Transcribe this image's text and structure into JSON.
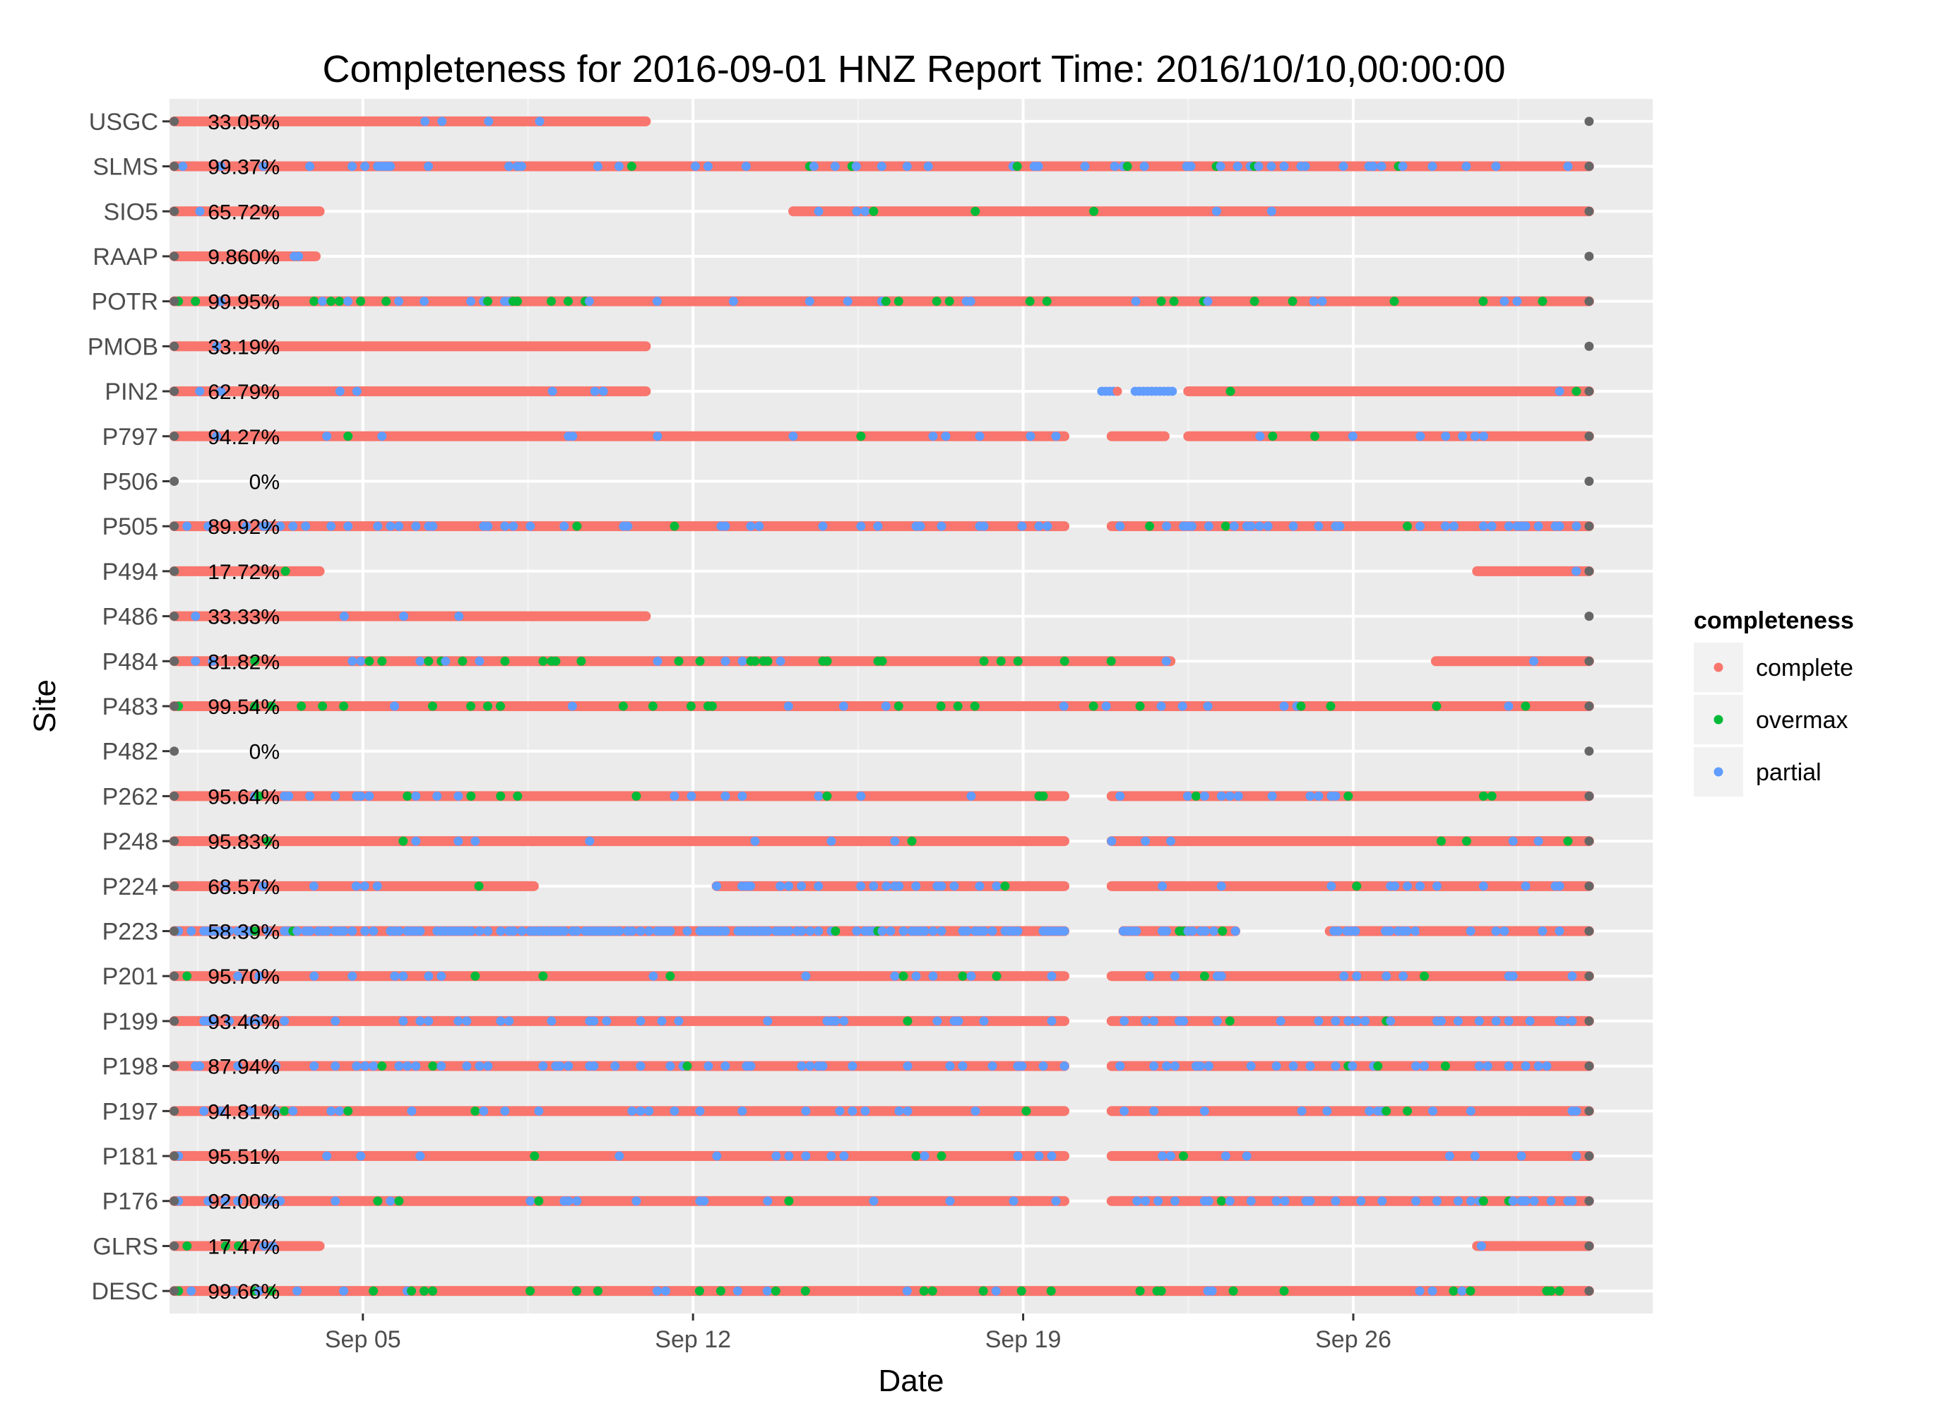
{
  "chart_data": {
    "type": "scatter",
    "title": "Completeness for  2016-09-01 HNZ  Report Time:  2016/10/10,00:00:00",
    "xlabel": "Date",
    "ylabel": "Site",
    "x_range": [
      "2016-08-31T21:36",
      "2016-10-02T08:24"
    ],
    "x_ticks": [
      "Sep 05",
      "Sep 12",
      "Sep 19",
      "Sep 26"
    ],
    "x_tick_dates": [
      "2016-09-05",
      "2016-09-12",
      "2016-09-19",
      "2016-09-26"
    ],
    "grid": true,
    "legend": {
      "title": "completeness",
      "placement": "right",
      "entries": [
        "complete",
        "overmax",
        "partial"
      ]
    },
    "colors": {
      "complete": "#F8766D",
      "overmax": "#00BA38",
      "partial": "#619CFF",
      "endpoint": "#666666",
      "panel": "#EBEBEB",
      "grid": "#FFFFFF"
    },
    "sites": [
      {
        "name": "USGC",
        "completeness": "33.05%",
        "start": "2016-09-01",
        "end": "2016-10-01",
        "segments": [
          {
            "from": "2016-09-01",
            "to": "2016-09-11T00:00",
            "overmax": 0.01,
            "partial": 0.03
          }
        ]
      },
      {
        "name": "SLMS",
        "completeness": "99.37%",
        "start": "2016-09-01",
        "end": "2016-10-01",
        "segments": [
          {
            "from": "2016-09-01",
            "to": "2016-10-01",
            "overmax": 0.04,
            "partial": 0.15
          }
        ]
      },
      {
        "name": "SIO5",
        "completeness": "65.72%",
        "start": "2016-09-01",
        "end": "2016-10-01",
        "segments": [
          {
            "from": "2016-09-01",
            "to": "2016-09-04T02:00",
            "overmax": 0.0,
            "partial": 0.02
          },
          {
            "from": "2016-09-14T03:00",
            "to": "2016-10-01",
            "overmax": 0.01,
            "partial": 0.02
          }
        ]
      },
      {
        "name": "RAAP",
        "completeness": "9.860%",
        "start": "2016-09-01",
        "end": "2016-10-01",
        "segments": [
          {
            "from": "2016-09-01",
            "to": "2016-09-04T00:00",
            "overmax": 0.0,
            "partial": 0.02
          }
        ]
      },
      {
        "name": "POTR",
        "completeness": "99.95%",
        "start": "2016-09-01",
        "end": "2016-10-01",
        "segments": [
          {
            "from": "2016-09-01",
            "to": "2016-10-01",
            "overmax": 0.07,
            "partial": 0.05
          }
        ]
      },
      {
        "name": "PMOB",
        "completeness": "33.19%",
        "start": "2016-09-01",
        "end": "2016-10-01",
        "segments": [
          {
            "from": "2016-09-01",
            "to": "2016-09-11T00:00",
            "overmax": 0.0,
            "partial": 0.02
          }
        ]
      },
      {
        "name": "PIN2",
        "completeness": "62.79%",
        "start": "2016-09-01",
        "end": "2016-10-01",
        "segments": [
          {
            "from": "2016-09-01",
            "to": "2016-09-11T00:00",
            "overmax": 0.0,
            "partial": 0.03
          },
          {
            "from": "2016-09-20T14:00",
            "to": "2016-09-21T00:00",
            "overmax": 0.0,
            "partial": 1.0
          },
          {
            "from": "2016-09-21T09:00",
            "to": "2016-09-22T06:00",
            "overmax": 0.0,
            "partial": 1.0
          },
          {
            "from": "2016-09-22T12:00",
            "to": "2016-10-01",
            "overmax": 0.01,
            "partial": 0.03
          }
        ]
      },
      {
        "name": "P797",
        "completeness": "94.27%",
        "start": "2016-09-01",
        "end": "2016-10-01",
        "segments": [
          {
            "from": "2016-09-01",
            "to": "2016-09-19T21:00",
            "overmax": 0.02,
            "partial": 0.05
          },
          {
            "from": "2016-09-20T21:00",
            "to": "2016-09-22T00:00",
            "overmax": 0.0,
            "partial": 0.05
          },
          {
            "from": "2016-09-22T12:00",
            "to": "2016-10-01",
            "overmax": 0.02,
            "partial": 0.05
          }
        ]
      },
      {
        "name": "P506",
        "completeness": "0%",
        "start": "2016-09-01",
        "end": "2016-10-01",
        "segments": []
      },
      {
        "name": "P505",
        "completeness": "89.92%",
        "start": "2016-09-01",
        "end": "2016-10-01",
        "segments": [
          {
            "from": "2016-09-01",
            "to": "2016-09-19T21:00",
            "overmax": 0.02,
            "partial": 0.2
          },
          {
            "from": "2016-09-20T21:00",
            "to": "2016-10-01",
            "overmax": 0.02,
            "partial": 0.2
          }
        ]
      },
      {
        "name": "P494",
        "completeness": "17.72%",
        "start": "2016-09-01",
        "end": "2016-10-01",
        "segments": [
          {
            "from": "2016-09-01",
            "to": "2016-09-04T02:00",
            "overmax": 0.02,
            "partial": 0.02
          },
          {
            "from": "2016-09-28T15:00",
            "to": "2016-10-01",
            "overmax": 0.0,
            "partial": 0.02
          }
        ]
      },
      {
        "name": "P486",
        "completeness": "33.33%",
        "start": "2016-09-01",
        "end": "2016-10-01",
        "segments": [
          {
            "from": "2016-09-01",
            "to": "2016-09-11T00:00",
            "overmax": 0.0,
            "partial": 0.02
          }
        ]
      },
      {
        "name": "P484",
        "completeness": "81.82%",
        "start": "2016-09-01",
        "end": "2016-10-01",
        "segments": [
          {
            "from": "2016-09-01",
            "to": "2016-09-22T03:00",
            "overmax": 0.1,
            "partial": 0.05
          },
          {
            "from": "2016-09-27T18:00",
            "to": "2016-10-01",
            "overmax": 0.02,
            "partial": 0.03
          }
        ]
      },
      {
        "name": "P483",
        "completeness": "99.54%",
        "start": "2016-09-01",
        "end": "2016-10-01",
        "segments": [
          {
            "from": "2016-09-01",
            "to": "2016-10-01",
            "overmax": 0.08,
            "partial": 0.05
          }
        ]
      },
      {
        "name": "P482",
        "completeness": "0%",
        "start": "2016-09-01",
        "end": "2016-10-01",
        "segments": []
      },
      {
        "name": "P262",
        "completeness": "95.64%",
        "start": "2016-09-01",
        "end": "2016-10-01",
        "segments": [
          {
            "from": "2016-09-01",
            "to": "2016-09-19T21:00",
            "overmax": 0.04,
            "partial": 0.08
          },
          {
            "from": "2016-09-20T21:00",
            "to": "2016-10-01",
            "overmax": 0.03,
            "partial": 0.08
          }
        ]
      },
      {
        "name": "P248",
        "completeness": "95.83%",
        "start": "2016-09-01",
        "end": "2016-10-01",
        "segments": [
          {
            "from": "2016-09-01",
            "to": "2016-09-19T21:00",
            "overmax": 0.02,
            "partial": 0.05
          },
          {
            "from": "2016-09-20T21:00",
            "to": "2016-10-01",
            "overmax": 0.02,
            "partial": 0.05
          }
        ]
      },
      {
        "name": "P224",
        "completeness": "68.57%",
        "start": "2016-09-01",
        "end": "2016-10-01",
        "segments": [
          {
            "from": "2016-09-01",
            "to": "2016-09-08T15:00",
            "overmax": 0.02,
            "partial": 0.1
          },
          {
            "from": "2016-09-12T12:00",
            "to": "2016-09-19T21:00",
            "overmax": 0.02,
            "partial": 0.25
          },
          {
            "from": "2016-09-20T21:00",
            "to": "2016-10-01",
            "overmax": 0.02,
            "partial": 0.1
          }
        ]
      },
      {
        "name": "P223",
        "completeness": "58.39%",
        "start": "2016-09-01",
        "end": "2016-10-01",
        "segments": [
          {
            "from": "2016-09-01",
            "to": "2016-09-19T21:00",
            "overmax": 0.03,
            "partial": 0.6
          },
          {
            "from": "2016-09-21T03:00",
            "to": "2016-09-23T12:00",
            "overmax": 0.03,
            "partial": 0.6
          },
          {
            "from": "2016-09-25T12:00",
            "to": "2016-09-27T12:00",
            "overmax": 0.03,
            "partial": 0.6
          },
          {
            "from": "2016-09-27T12:00",
            "to": "2016-10-01",
            "overmax": 0.03,
            "partial": 0.1
          }
        ]
      },
      {
        "name": "P201",
        "completeness": "95.70%",
        "start": "2016-09-01",
        "end": "2016-10-01",
        "segments": [
          {
            "from": "2016-09-01",
            "to": "2016-09-19T21:00",
            "overmax": 0.02,
            "partial": 0.06
          },
          {
            "from": "2016-09-20T21:00",
            "to": "2016-10-01",
            "overmax": 0.02,
            "partial": 0.08
          }
        ]
      },
      {
        "name": "P199",
        "completeness": "93.46%",
        "start": "2016-09-01",
        "end": "2016-10-01",
        "segments": [
          {
            "from": "2016-09-01",
            "to": "2016-09-19T21:00",
            "overmax": 0.02,
            "partial": 0.15
          },
          {
            "from": "2016-09-20T21:00",
            "to": "2016-10-01",
            "overmax": 0.02,
            "partial": 0.15
          }
        ]
      },
      {
        "name": "P198",
        "completeness": "87.94%",
        "start": "2016-09-01",
        "end": "2016-10-01",
        "segments": [
          {
            "from": "2016-09-01",
            "to": "2016-09-19T21:00",
            "overmax": 0.03,
            "partial": 0.22
          },
          {
            "from": "2016-09-20T21:00",
            "to": "2016-10-01",
            "overmax": 0.03,
            "partial": 0.22
          }
        ]
      },
      {
        "name": "P197",
        "completeness": "94.81%",
        "start": "2016-09-01",
        "end": "2016-10-01",
        "segments": [
          {
            "from": "2016-09-01",
            "to": "2016-09-19T21:00",
            "overmax": 0.03,
            "partial": 0.08
          },
          {
            "from": "2016-09-20T21:00",
            "to": "2016-10-01",
            "overmax": 0.03,
            "partial": 0.08
          }
        ]
      },
      {
        "name": "P181",
        "completeness": "95.51%",
        "start": "2016-09-01",
        "end": "2016-10-01",
        "segments": [
          {
            "from": "2016-09-01",
            "to": "2016-09-19T21:00",
            "overmax": 0.01,
            "partial": 0.06
          },
          {
            "from": "2016-09-20T21:00",
            "to": "2016-10-01",
            "overmax": 0.01,
            "partial": 0.06
          }
        ]
      },
      {
        "name": "P176",
        "completeness": "92.00%",
        "start": "2016-09-01",
        "end": "2016-10-01",
        "segments": [
          {
            "from": "2016-09-01",
            "to": "2016-09-19T21:00",
            "overmax": 0.03,
            "partial": 0.15
          },
          {
            "from": "2016-09-20T21:00",
            "to": "2016-10-01",
            "overmax": 0.03,
            "partial": 0.15
          }
        ]
      },
      {
        "name": "GLRS",
        "completeness": "17.47%",
        "start": "2016-09-01",
        "end": "2016-10-01",
        "segments": [
          {
            "from": "2016-09-01",
            "to": "2016-09-04T02:00",
            "overmax": 0.02,
            "partial": 0.02
          },
          {
            "from": "2016-09-28T15:00",
            "to": "2016-10-01",
            "overmax": 0.0,
            "partial": 0.05
          }
        ]
      },
      {
        "name": "DESC",
        "completeness": "99.66%",
        "start": "2016-09-01",
        "end": "2016-10-01",
        "segments": [
          {
            "from": "2016-09-01",
            "to": "2016-10-01",
            "overmax": 0.08,
            "partial": 0.05
          }
        ]
      }
    ]
  }
}
